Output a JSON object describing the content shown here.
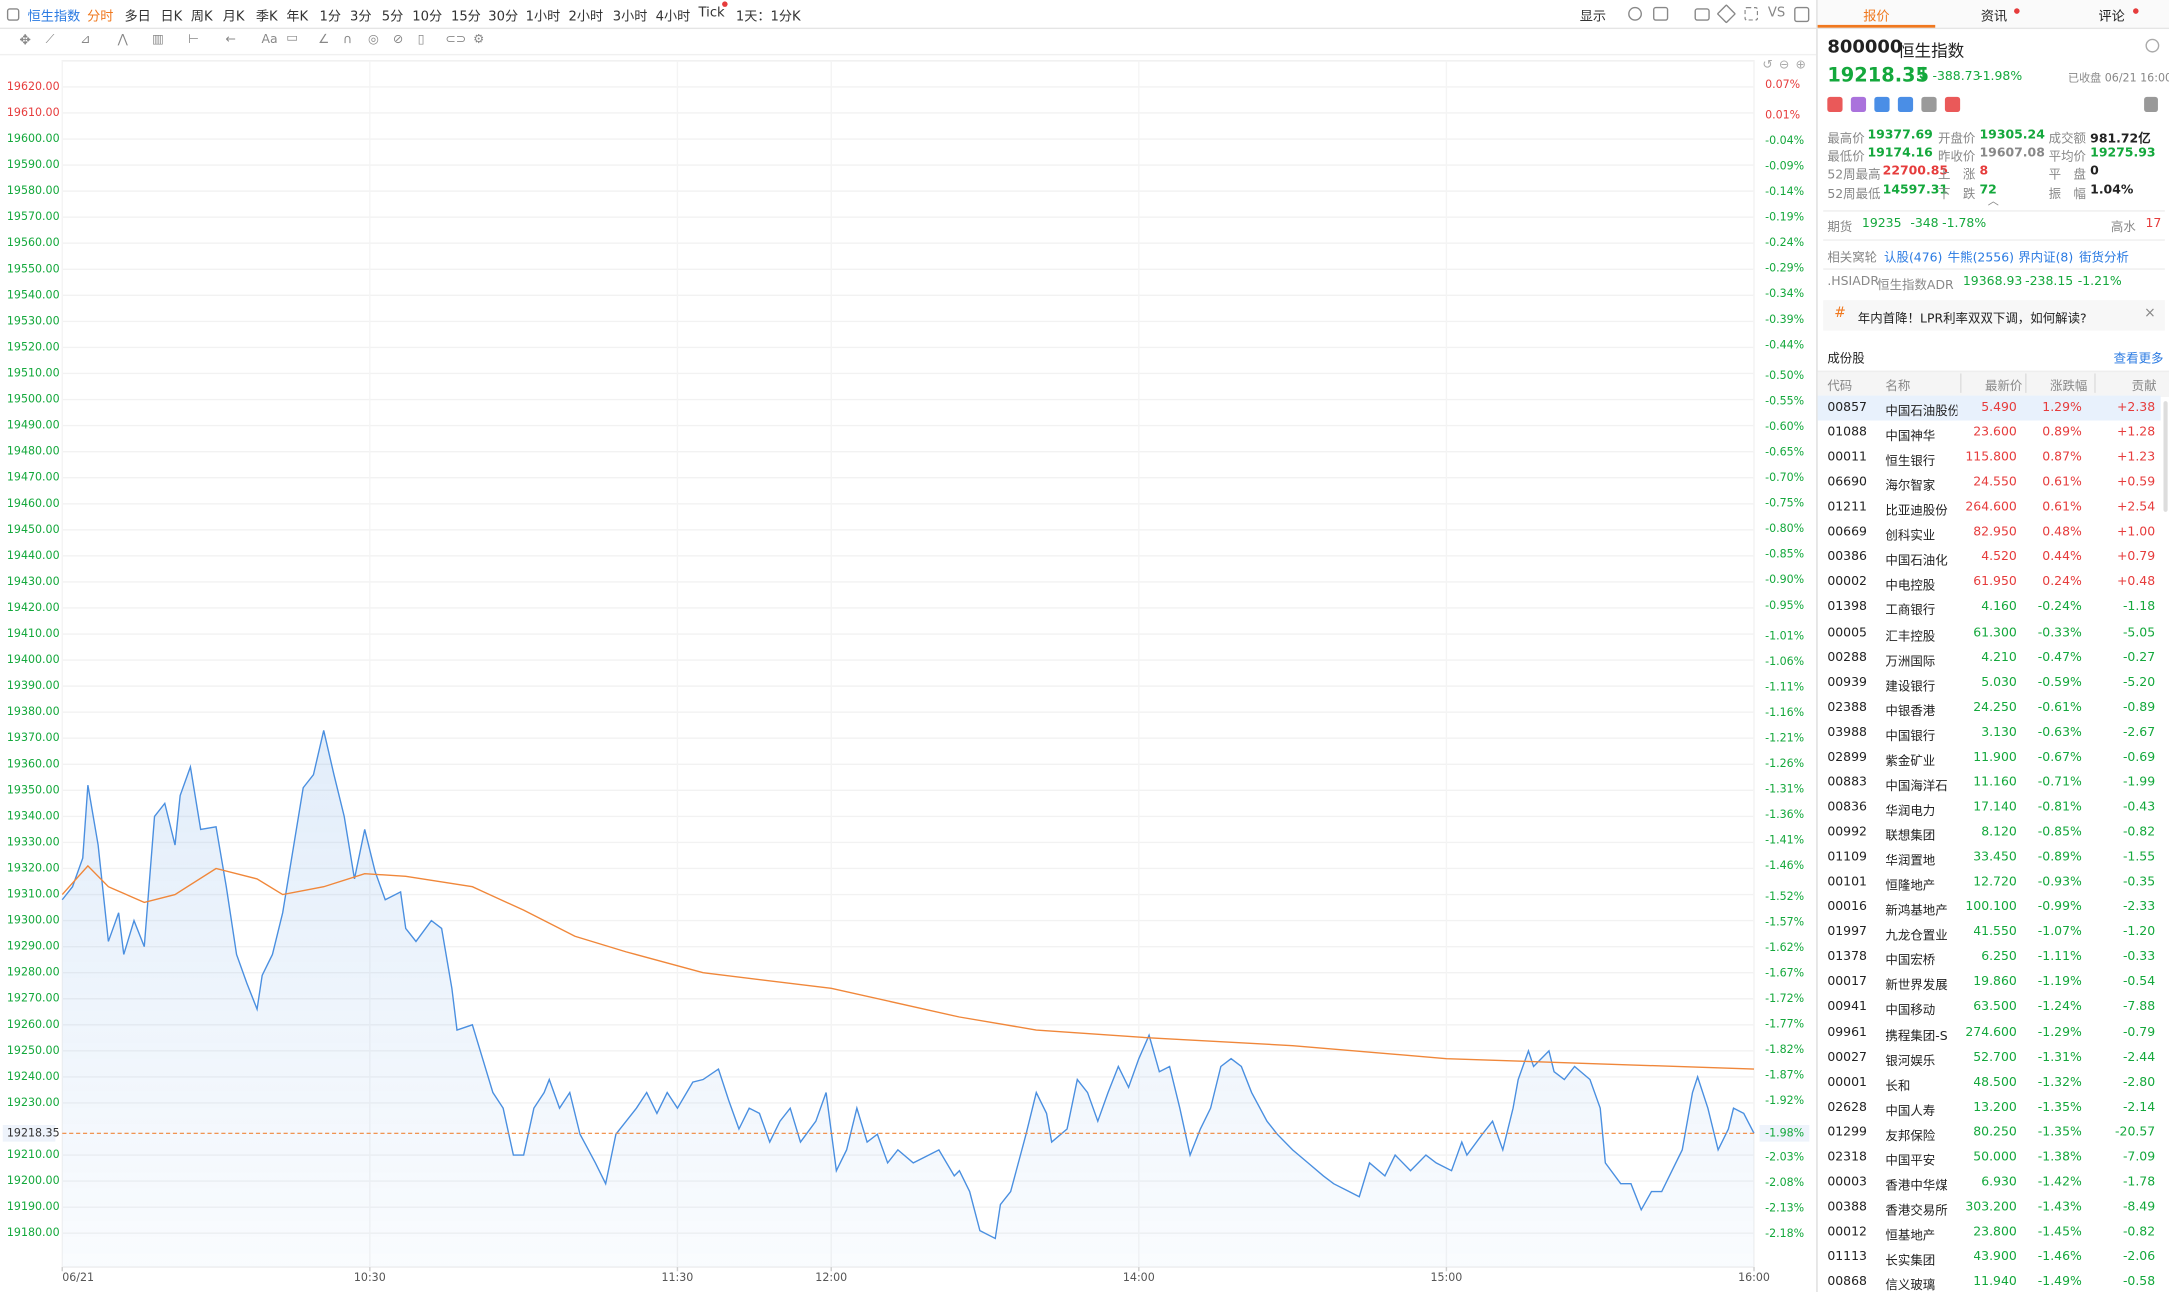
{
  "toolbar": {
    "tabs": [
      "恒生指数",
      "分时",
      "多日",
      "日K",
      "周K",
      "月K",
      "季K",
      "年K",
      "1分",
      "3分",
      "5分",
      "10分",
      "15分",
      "30分",
      "1小时",
      "2小时",
      "3小时",
      "4小时",
      "Tick",
      "1天：1分K"
    ],
    "display": "显示",
    "vs": "VS",
    "font_tool": "Aa"
  },
  "chart_data": {
    "type": "line",
    "x": [
      0,
      2,
      4,
      5,
      7,
      9,
      11,
      12,
      14,
      16,
      18,
      20,
      22,
      23,
      25,
      27,
      30,
      32,
      34,
      36,
      38,
      39,
      41,
      43,
      45,
      47,
      49,
      51,
      53,
      55,
      57,
      59,
      61,
      63,
      66,
      67,
      69,
      72,
      74,
      76,
      77,
      80,
      82,
      84,
      86,
      88,
      90,
      92,
      94,
      95,
      97,
      99,
      101,
      104,
      106,
      108,
      110,
      112,
      114,
      116,
      118,
      120,
      123,
      125,
      128,
      130,
      132,
      134,
      136,
      138,
      140,
      142,
      144,
      147,
      149,
      151,
      153,
      155,
      157,
      159,
      161,
      163,
      166,
      169,
      171,
      174,
      175,
      177,
      179,
      182,
      183,
      185,
      188,
      190,
      192,
      193,
      196,
      198,
      200,
      202,
      204,
      206,
      208,
      210,
      212,
      214,
      216,
      218,
      220,
      222,
      224,
      226,
      228,
      230,
      232,
      235,
      237,
      240,
      243,
      246,
      248,
      251,
      253,
      255,
      258,
      260,
      263,
      266,
      268,
      271,
      273,
      274,
      277,
      279,
      281,
      283,
      284,
      286,
      287,
      290,
      291,
      293,
      295,
      298,
      300,
      301,
      304,
      306,
      308,
      310,
      312,
      314,
      316,
      318,
      319,
      321,
      323,
      325,
      326,
      328,
      330
    ],
    "series": [
      {
        "color": "#4a8fe0",
        "area": true,
        "values": [
          19308,
          19313,
          19324,
          19352,
          19329,
          19292,
          19303,
          19287,
          19300,
          19290,
          19340,
          19345,
          19329,
          19348,
          19359,
          19335,
          19336,
          19313,
          19287,
          19276,
          19266,
          19279,
          19287,
          19303,
          19327,
          19351,
          19356,
          19373,
          19356,
          19340,
          19316,
          19335,
          19319,
          19308,
          19311,
          19297,
          19292,
          19300,
          19297,
          19274,
          19258,
          19260,
          19247,
          19234,
          19228,
          19210,
          19210,
          19228,
          19234,
          19239,
          19228,
          19234,
          19218,
          19207,
          19199,
          19218,
          19223,
          19228,
          19234,
          19226,
          19234,
          19228,
          19238,
          19239,
          19243,
          19231,
          19220,
          19228,
          19226,
          19215,
          19223,
          19228,
          19215,
          19223,
          19234,
          19204,
          19212,
          19228,
          19215,
          19218,
          19207,
          19212,
          19207,
          19210,
          19212,
          19202,
          19204,
          19196,
          19181,
          19178,
          19191,
          19196,
          19218,
          19234,
          19226,
          19215,
          19220,
          19239,
          19234,
          19223,
          19234,
          19244,
          19236,
          19247,
          19256,
          19242,
          19244,
          19228,
          19210,
          19220,
          19228,
          19244,
          19247,
          19244,
          19234,
          19223,
          19218,
          19212,
          19207,
          19202,
          19199,
          19196,
          19194,
          19207,
          19202,
          19210,
          19204,
          19210,
          19207,
          19204,
          19215,
          19210,
          19218,
          19223,
          19212,
          19228,
          19239,
          19250,
          19244,
          19250,
          19242,
          19239,
          19244,
          19239,
          19228,
          19207,
          19199,
          19199,
          19189,
          19196,
          19196,
          19204,
          19212,
          19234,
          19240,
          19228,
          19212,
          19220,
          19228,
          19226,
          19218.35
        ]
      },
      {
        "color": "#f0873a",
        "x": [
          0,
          5,
          9,
          16,
          22,
          30,
          38,
          43,
          51,
          59,
          67,
          80,
          90,
          100,
          110,
          125,
          150,
          175,
          190,
          212,
          240,
          270,
          300,
          330
        ],
        "values": [
          19310,
          19321,
          19313,
          19307,
          19310,
          19320,
          19316,
          19310,
          19313,
          19318,
          19317,
          19313,
          19304,
          19294,
          19288,
          19280,
          19274,
          19263,
          19258,
          19255,
          19252,
          19247,
          19245,
          19243
        ]
      }
    ],
    "xlim": [
      0,
      330
    ],
    "xticks": [
      {
        "value": 0,
        "label": "06/21"
      },
      {
        "value": 60,
        "label": "10:30"
      },
      {
        "value": 120,
        "label": "11:30"
      },
      {
        "value": 150,
        "label": "12:00"
      },
      {
        "value": 210,
        "label": "14:00"
      },
      {
        "value": 270,
        "label": "15:00"
      },
      {
        "value": 330,
        "label": "16:00"
      }
    ],
    "ylim": [
      19167,
      19630
    ],
    "yticks": [
      {
        "value": 19620,
        "label": "19620.00"
      },
      {
        "value": 19610,
        "label": "19610.00"
      },
      {
        "value": 19600,
        "label": "19600.00"
      },
      {
        "value": 19590,
        "label": "19590.00"
      },
      {
        "value": 19580,
        "label": "19580.00"
      },
      {
        "value": 19570,
        "label": "19570.00"
      },
      {
        "value": 19560,
        "label": "19560.00"
      },
      {
        "value": 19550,
        "label": "19550.00"
      },
      {
        "value": 19540,
        "label": "19540.00"
      },
      {
        "value": 19530,
        "label": "19530.00"
      },
      {
        "value": 19520,
        "label": "19520.00"
      },
      {
        "value": 19510,
        "label": "19510.00"
      },
      {
        "value": 19500,
        "label": "19500.00"
      },
      {
        "value": 19490,
        "label": "19490.00"
      },
      {
        "value": 19480,
        "label": "19480.00"
      },
      {
        "value": 19470,
        "label": "19470.00"
      },
      {
        "value": 19460,
        "label": "19460.00"
      },
      {
        "value": 19450,
        "label": "19450.00"
      },
      {
        "value": 19440,
        "label": "19440.00"
      },
      {
        "value": 19430,
        "label": "19430.00"
      },
      {
        "value": 19420,
        "label": "19420.00"
      },
      {
        "value": 19410,
        "label": "19410.00"
      },
      {
        "value": 19400,
        "label": "19400.00"
      },
      {
        "value": 19390,
        "label": "19390.00"
      },
      {
        "value": 19380,
        "label": "19380.00"
      },
      {
        "value": 19370,
        "label": "19370.00"
      },
      {
        "value": 19360,
        "label": "19360.00"
      },
      {
        "value": 19350,
        "label": "19350.00"
      },
      {
        "value": 19340,
        "label": "19340.00"
      },
      {
        "value": 19330,
        "label": "19330.00"
      },
      {
        "value": 19320,
        "label": "19320.00"
      },
      {
        "value": 19310,
        "label": "19310.00"
      },
      {
        "value": 19300,
        "label": "19300.00"
      },
      {
        "value": 19290,
        "label": "19290.00"
      },
      {
        "value": 19280,
        "label": "19280.00"
      },
      {
        "value": 19270,
        "label": "19270.00"
      },
      {
        "value": 19260,
        "label": "19260.00"
      },
      {
        "value": 19250,
        "label": "19250.00"
      },
      {
        "value": 19240,
        "label": "19240.00"
      },
      {
        "value": 19230,
        "label": "19230.00"
      },
      {
        "value": 19210,
        "label": "19210.00"
      },
      {
        "value": 19200,
        "label": "19200.00"
      },
      {
        "value": 19190,
        "label": "19190.00"
      },
      {
        "value": 19180,
        "label": "19180.00"
      }
    ],
    "y2lim": [
      -2.245,
      0.117
    ],
    "y2ticks": [
      {
        "value": 0.07,
        "label": "0.07%"
      },
      {
        "value": 0.01,
        "label": "0.01%"
      },
      {
        "value": -0.04,
        "label": "-0.04%"
      },
      {
        "value": -0.09,
        "label": "-0.09%"
      },
      {
        "value": -0.14,
        "label": "-0.14%"
      },
      {
        "value": -0.19,
        "label": "-0.19%"
      },
      {
        "value": -0.24,
        "label": "-0.24%"
      },
      {
        "value": -0.29,
        "label": "-0.29%"
      },
      {
        "value": -0.34,
        "label": "-0.34%"
      },
      {
        "value": -0.39,
        "label": "-0.39%"
      },
      {
        "value": -0.44,
        "label": "-0.44%"
      },
      {
        "value": -0.5,
        "label": "-0.50%"
      },
      {
        "value": -0.55,
        "label": "-0.55%"
      },
      {
        "value": -0.6,
        "label": "-0.60%"
      },
      {
        "value": -0.65,
        "label": "-0.65%"
      },
      {
        "value": -0.7,
        "label": "-0.70%"
      },
      {
        "value": -0.75,
        "label": "-0.75%"
      },
      {
        "value": -0.8,
        "label": "-0.80%"
      },
      {
        "value": -0.85,
        "label": "-0.85%"
      },
      {
        "value": -0.9,
        "label": "-0.90%"
      },
      {
        "value": -0.95,
        "label": "-0.95%"
      },
      {
        "value": -1.01,
        "label": "-1.01%"
      },
      {
        "value": -1.06,
        "label": "-1.06%"
      },
      {
        "value": -1.11,
        "label": "-1.11%"
      },
      {
        "value": -1.16,
        "label": "-1.16%"
      },
      {
        "value": -1.21,
        "label": "-1.21%"
      },
      {
        "value": -1.26,
        "label": "-1.26%"
      },
      {
        "value": -1.31,
        "label": "-1.31%"
      },
      {
        "value": -1.36,
        "label": "-1.36%"
      },
      {
        "value": -1.41,
        "label": "-1.41%"
      },
      {
        "value": -1.46,
        "label": "-1.46%"
      },
      {
        "value": -1.52,
        "label": "-1.52%"
      },
      {
        "value": -1.57,
        "label": "-1.57%"
      },
      {
        "value": -1.62,
        "label": "-1.62%"
      },
      {
        "value": -1.67,
        "label": "-1.67%"
      },
      {
        "value": -1.72,
        "label": "-1.72%"
      },
      {
        "value": -1.77,
        "label": "-1.77%"
      },
      {
        "value": -1.82,
        "label": "-1.82%"
      },
      {
        "value": -1.87,
        "label": "-1.87%"
      },
      {
        "value": -1.92,
        "label": "-1.92%"
      },
      {
        "value": -2.03,
        "label": "-2.03%"
      },
      {
        "value": -2.08,
        "label": "-2.08%"
      },
      {
        "value": -2.13,
        "label": "-2.13%"
      },
      {
        "value": -2.18,
        "label": "-2.18%"
      }
    ],
    "reference": {
      "value": 19218.35,
      "color": "#f0873a",
      "y2": {
        "value": -1.98,
        "label": "-1.98%"
      }
    },
    "grid": true
  },
  "panel": {
    "tabs": [
      "报价",
      "资讯",
      "评论"
    ],
    "code": "800000",
    "name": "恒生指数",
    "price": "19218.35",
    "change": "-388.73",
    "change_pct": "-1.98%",
    "status": "已收盘 06/21 16:00",
    "stats": [
      [
        "最高价",
        "19377.69"
      ],
      [
        "开盘价",
        "19305.24"
      ],
      [
        "成交额",
        "981.72亿"
      ],
      [
        "最低价",
        "19174.16"
      ],
      [
        "昨收价",
        "19607.08"
      ],
      [
        "平均价",
        "19275.93"
      ],
      [
        "52周最高",
        "22700.85"
      ],
      [
        "上　涨",
        "8"
      ],
      [
        "平　盘",
        "0"
      ],
      [
        "52周最低",
        "14597.31"
      ],
      [
        "下　跌",
        "72"
      ],
      [
        "振　幅",
        "1.04%"
      ]
    ],
    "futures": [
      "期货",
      "19235",
      "-348",
      "-1.78%",
      "高水",
      "17"
    ],
    "warrants": [
      "相关窝轮",
      "认股(476)",
      "牛熊(2556)",
      "界内证(8)",
      "街货分析"
    ],
    "adr": [
      ".HSIADR",
      "恒生指数ADR",
      "19368.93",
      "-238.15",
      "-1.21%"
    ],
    "news": "年内首降！LPR利率双双下调，如何解读?",
    "constituents_title": "成份股",
    "more": "查看更多",
    "table": {
      "headers": [
        "代码",
        "名称",
        "最新价",
        "涨跌幅",
        "贡献"
      ],
      "rows": [
        [
          "00857",
          "中国石油股份",
          "5.490",
          "1.29%",
          "+2.38"
        ],
        [
          "01088",
          "中国神华",
          "23.600",
          "0.89%",
          "+1.28"
        ],
        [
          "00011",
          "恒生银行",
          "115.800",
          "0.87%",
          "+1.23"
        ],
        [
          "06690",
          "海尔智家",
          "24.550",
          "0.61%",
          "+0.59"
        ],
        [
          "01211",
          "比亚迪股份",
          "264.600",
          "0.61%",
          "+2.54"
        ],
        [
          "00669",
          "创科实业",
          "82.950",
          "0.48%",
          "+1.00"
        ],
        [
          "00386",
          "中国石油化",
          "4.520",
          "0.44%",
          "+0.79"
        ],
        [
          "00002",
          "中电控股",
          "61.950",
          "0.24%",
          "+0.48"
        ],
        [
          "01398",
          "工商银行",
          "4.160",
          "-0.24%",
          "-1.18"
        ],
        [
          "00005",
          "汇丰控股",
          "61.300",
          "-0.33%",
          "-5.05"
        ],
        [
          "00288",
          "万洲国际",
          "4.210",
          "-0.47%",
          "-0.27"
        ],
        [
          "00939",
          "建设银行",
          "5.030",
          "-0.59%",
          "-5.20"
        ],
        [
          "02388",
          "中银香港",
          "24.250",
          "-0.61%",
          "-0.89"
        ],
        [
          "03988",
          "中国银行",
          "3.130",
          "-0.63%",
          "-2.67"
        ],
        [
          "02899",
          "紫金矿业",
          "11.900",
          "-0.67%",
          "-0.69"
        ],
        [
          "00883",
          "中国海洋石",
          "11.160",
          "-0.71%",
          "-1.99"
        ],
        [
          "00836",
          "华润电力",
          "17.140",
          "-0.81%",
          "-0.43"
        ],
        [
          "00992",
          "联想集团",
          "8.120",
          "-0.85%",
          "-0.82"
        ],
        [
          "01109",
          "华润置地",
          "33.450",
          "-0.89%",
          "-1.55"
        ],
        [
          "00101",
          "恒隆地产",
          "12.720",
          "-0.93%",
          "-0.35"
        ],
        [
          "00016",
          "新鸿基地产",
          "100.100",
          "-0.99%",
          "-2.33"
        ],
        [
          "01997",
          "九龙仓置业",
          "41.550",
          "-1.07%",
          "-1.20"
        ],
        [
          "01378",
          "中国宏桥",
          "6.250",
          "-1.11%",
          "-0.33"
        ],
        [
          "00017",
          "新世界发展",
          "19.860",
          "-1.19%",
          "-0.54"
        ],
        [
          "00941",
          "中国移动",
          "63.500",
          "-1.24%",
          "-7.88"
        ],
        [
          "09961",
          "携程集团-S",
          "274.600",
          "-1.29%",
          "-0.79"
        ],
        [
          "00027",
          "银河娱乐",
          "52.700",
          "-1.31%",
          "-2.44"
        ],
        [
          "00001",
          "长和",
          "48.500",
          "-1.32%",
          "-2.80"
        ],
        [
          "02628",
          "中国人寿",
          "13.200",
          "-1.35%",
          "-2.14"
        ],
        [
          "01299",
          "友邦保险",
          "80.250",
          "-1.35%",
          "-20.57"
        ],
        [
          "02318",
          "中国平安",
          "50.000",
          "-1.38%",
          "-7.09"
        ],
        [
          "00003",
          "香港中华煤",
          "6.930",
          "-1.42%",
          "-1.78"
        ],
        [
          "00388",
          "香港交易所",
          "303.200",
          "-1.43%",
          "-8.49"
        ],
        [
          "00012",
          "恒基地产",
          "23.800",
          "-1.45%",
          "-0.82"
        ],
        [
          "01113",
          "长实集团",
          "43.900",
          "-1.46%",
          "-2.06"
        ],
        [
          "00868",
          "信义玻璃",
          "11.940",
          "-1.49%",
          "-0.58"
        ]
      ]
    }
  }
}
